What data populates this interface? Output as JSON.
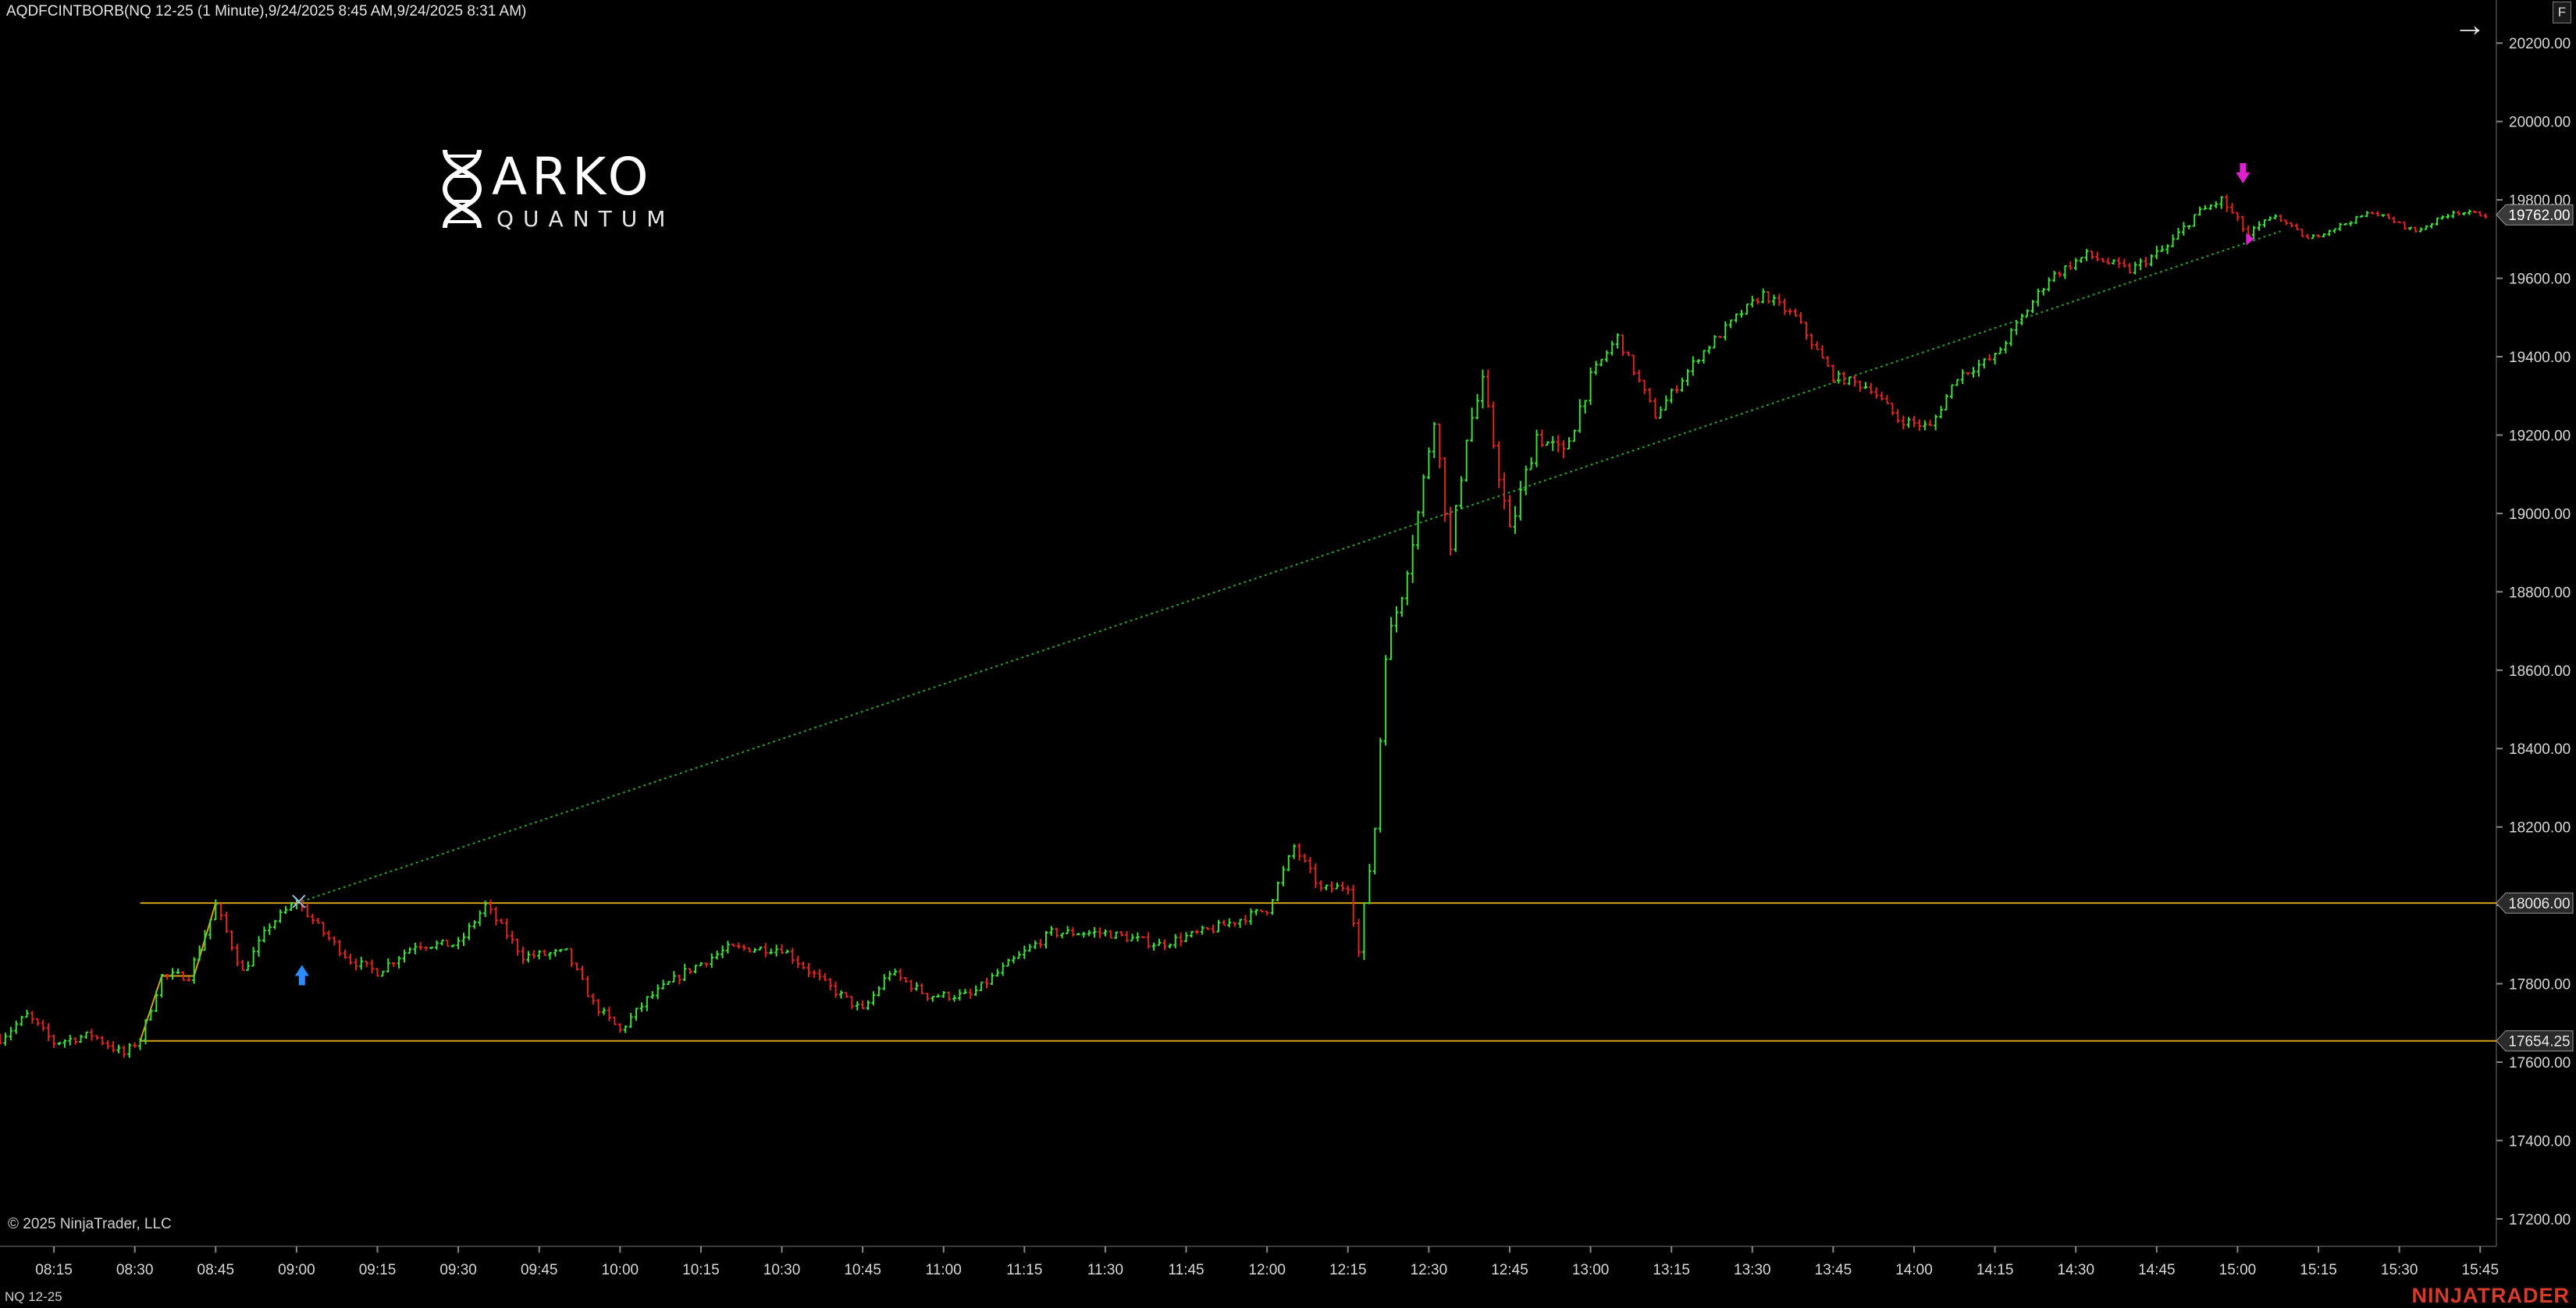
{
  "window": {
    "title": "AQDFCINTBORB(NQ 12-25 (1 Minute),9/24/2025 8:45 AM,9/24/2025 8:31 AM)",
    "instrument": "NQ 12-25",
    "copyright": "© 2025 NinjaTrader, LLC",
    "brand": "NINJATRADER",
    "f_button": "F",
    "arrow_icon": "arrow-right-icon"
  },
  "logo": {
    "word": "ARKO",
    "sub": "QUANTUM",
    "icon": "dna-icon"
  },
  "colors": {
    "background": "#000000",
    "up_bar": "#3ddc3d",
    "down_bar": "#e02424",
    "range_line": "#d4a017",
    "trend_line": "#2f9b2f",
    "long_marker": "#2a8cff",
    "short_marker": "#e020d0",
    "axis_text": "#d8d8d8",
    "brand": "#d63a2a"
  },
  "chart_data": {
    "type": "candlestick",
    "title": "",
    "xlabel": "",
    "ylabel": "",
    "x_ticks": [
      "08:15",
      "08:30",
      "08:45",
      "09:00",
      "09:15",
      "09:30",
      "09:45",
      "10:00",
      "10:15",
      "10:30",
      "10:45",
      "11:00",
      "11:15",
      "11:30",
      "11:45",
      "12:00",
      "12:15",
      "12:30",
      "12:45",
      "13:00",
      "13:15",
      "13:30",
      "13:45",
      "14:00",
      "14:15",
      "14:30",
      "14:45",
      "15:00",
      "15:15",
      "15:30",
      "15:45"
    ],
    "y_ticks": [
      17200,
      17400,
      17600,
      17800,
      18000,
      18200,
      18400,
      18600,
      18800,
      19000,
      19200,
      19400,
      19600,
      19800,
      20000,
      20200
    ],
    "y_tick_labels": [
      "17200.00",
      "17400.00",
      "17600.00",
      "17800.00",
      "18000.00",
      "18200.00",
      "18400.00",
      "18600.00",
      "18800.00",
      "19000.00",
      "19200.00",
      "19400.00",
      "19600.00",
      "19800.00",
      "20000.00",
      "20200.00"
    ],
    "ylim": [
      17130,
      20310
    ],
    "xlim": [
      "08:05",
      "15:48"
    ],
    "price_path": [
      [
        "08:05",
        17660
      ],
      [
        "08:10",
        17720
      ],
      [
        "08:15",
        17650
      ],
      [
        "08:22",
        17670
      ],
      [
        "08:28",
        17620
      ],
      [
        "08:31",
        17660
      ],
      [
        "08:35",
        17820
      ],
      [
        "08:40",
        17820
      ],
      [
        "08:45",
        18000
      ],
      [
        "08:50",
        17830
      ],
      [
        "08:55",
        17950
      ],
      [
        "09:00",
        18010
      ],
      [
        "09:05",
        17930
      ],
      [
        "09:10",
        17860
      ],
      [
        "09:15",
        17830
      ],
      [
        "09:22",
        17900
      ],
      [
        "09:30",
        17900
      ],
      [
        "09:35",
        18000
      ],
      [
        "09:42",
        17870
      ],
      [
        "09:50",
        17880
      ],
      [
        "09:55",
        17750
      ],
      [
        "10:00",
        17680
      ],
      [
        "10:05",
        17760
      ],
      [
        "10:12",
        17830
      ],
      [
        "10:20",
        17890
      ],
      [
        "10:30",
        17890
      ],
      [
        "10:38",
        17800
      ],
      [
        "10:45",
        17730
      ],
      [
        "10:50",
        17830
      ],
      [
        "10:57",
        17770
      ],
      [
        "11:05",
        17770
      ],
      [
        "11:12",
        17850
      ],
      [
        "11:20",
        17930
      ],
      [
        "11:30",
        17930
      ],
      [
        "11:40",
        17900
      ],
      [
        "11:50",
        17940
      ],
      [
        "12:00",
        17990
      ],
      [
        "12:05",
        18150
      ],
      [
        "12:10",
        18040
      ],
      [
        "12:15",
        18050
      ],
      [
        "12:17",
        17880
      ],
      [
        "12:20",
        18200
      ],
      [
        "12:22",
        18650
      ],
      [
        "12:25",
        18800
      ],
      [
        "12:28",
        19000
      ],
      [
        "12:31",
        19250
      ],
      [
        "12:34",
        18900
      ],
      [
        "12:37",
        19200
      ],
      [
        "12:40",
        19330
      ],
      [
        "12:45",
        18950
      ],
      [
        "12:50",
        19200
      ],
      [
        "12:55",
        19150
      ],
      [
        "13:00",
        19350
      ],
      [
        "13:05",
        19450
      ],
      [
        "13:12",
        19250
      ],
      [
        "13:20",
        19400
      ],
      [
        "13:27",
        19500
      ],
      [
        "13:32",
        19560
      ],
      [
        "13:38",
        19500
      ],
      [
        "13:45",
        19350
      ],
      [
        "13:52",
        19320
      ],
      [
        "13:57",
        19240
      ],
      [
        "14:03",
        19220
      ],
      [
        "14:08",
        19350
      ],
      [
        "14:15",
        19400
      ],
      [
        "14:20",
        19500
      ],
      [
        "14:25",
        19600
      ],
      [
        "14:32",
        19660
      ],
      [
        "14:40",
        19620
      ],
      [
        "14:47",
        19680
      ],
      [
        "14:52",
        19760
      ],
      [
        "14:57",
        19800
      ],
      [
        "15:02",
        19710
      ],
      [
        "15:07",
        19760
      ],
      [
        "15:13",
        19700
      ],
      [
        "15:20",
        19740
      ],
      [
        "15:25",
        19770
      ],
      [
        "15:33",
        19720
      ],
      [
        "15:40",
        19770
      ],
      [
        "15:46",
        19762
      ]
    ],
    "range_lines": [
      {
        "value": 18006.0,
        "label": "18006.00"
      },
      {
        "value": 17654.25,
        "label": "17654.25"
      }
    ],
    "last_price": {
      "value": 19762.0,
      "label": "19762.00"
    },
    "trend_line": {
      "from": [
        "09:01",
        18010
      ],
      "to": [
        "15:08",
        19720
      ]
    },
    "markers": [
      {
        "type": "long-entry",
        "time": "09:01",
        "price": 17820
      },
      {
        "type": "short-entry",
        "time": "15:01",
        "price": 19870
      }
    ]
  }
}
